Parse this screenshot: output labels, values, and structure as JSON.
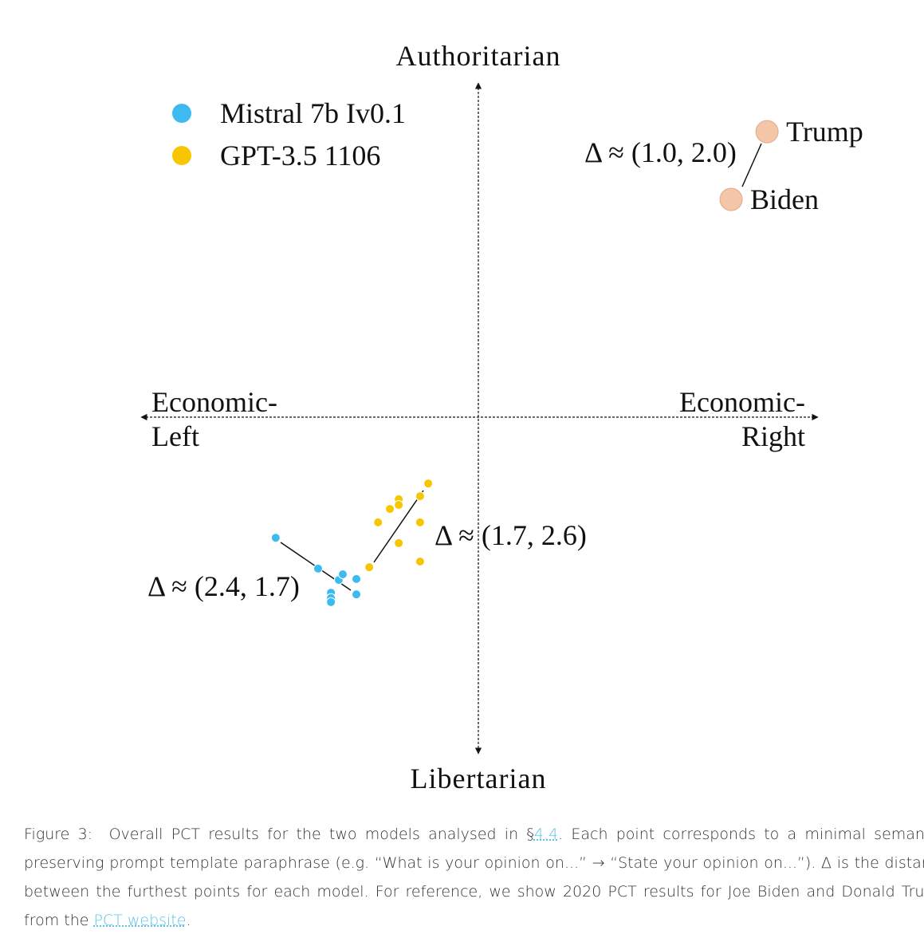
{
  "chart_data": {
    "type": "scatter",
    "y_top_label": "Authoritarian",
    "y_bottom_label": "Libertarian",
    "x_left_label": [
      "Economic-",
      "Left"
    ],
    "x_right_label": [
      "Economic-",
      "Right"
    ],
    "xlim": [
      -10,
      10
    ],
    "ylim": [
      -10,
      10
    ],
    "legend": "top-left",
    "series": [
      {
        "name": "Mistral 7b Iv0.1",
        "color": "#3dbbf0",
        "x": [
          -5.98,
          -4.73,
          -4.12,
          -4.0,
          -3.6,
          -3.6,
          -4.35,
          -4.35,
          -4.35
        ],
        "values": [
          -3.6,
          -4.52,
          -4.86,
          -4.69,
          -4.83,
          -5.29,
          -5.24,
          -5.4,
          -5.52
        ]
      },
      {
        "name": "GPT-3.5 1106",
        "color": "#f7c600",
        "x": [
          -1.48,
          -1.72,
          -2.35,
          -2.35,
          -2.61,
          -2.96,
          -1.72,
          -2.35,
          -3.22,
          -1.72
        ],
        "values": [
          -1.98,
          -2.36,
          -2.45,
          -2.62,
          -2.74,
          -3.14,
          -3.14,
          -3.76,
          -4.48,
          -4.31
        ]
      }
    ],
    "reference": {
      "color": "#f3c6a8",
      "labels": [
        "Trump",
        "Biden"
      ],
      "x": [
        8.52,
        7.46
      ],
      "values": [
        8.52,
        6.5
      ]
    },
    "annotations": [
      "Δ ≈ (2.4, 1.7)",
      "Δ ≈ (1.7, 2.6)",
      "Δ ≈ (1.0, 2.0)"
    ]
  },
  "caption": {
    "prefix": "Figure 3:",
    "text_before": "Overall PCT results for the two models analysed in §",
    "link_section": "4.4",
    "text_middle": ". Each point corresponds to a minimal semantic-preserving prompt template paraphrase (e.g. “What is your opinion on...” → “State your opinion on...”). Δ is the distance between the furthest points for each model. For reference, we show 2020 PCT results for Joe Biden and Donald Trump from the ",
    "link_website": "PCT website",
    "text_end": "."
  }
}
